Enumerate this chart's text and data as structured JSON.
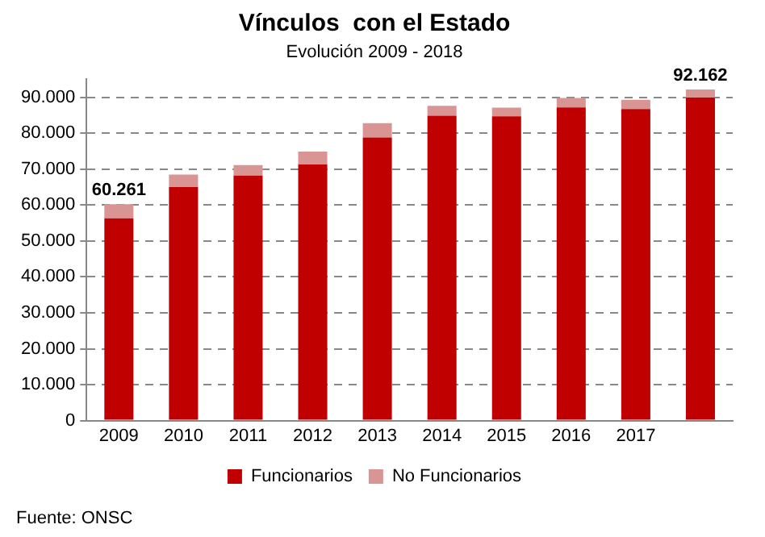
{
  "chart_data": {
    "type": "bar",
    "title": "Vínculos  con el Estado",
    "subtitle": "Evolución 2009 - 2018",
    "categories": [
      "2009",
      "2010",
      "2011",
      "2012",
      "2013",
      "2014",
      "2015",
      "2016",
      "2017",
      null
    ],
    "series": [
      {
        "name": "Funcionarios",
        "color": "#c00000",
        "values": [
          56300,
          65000,
          68200,
          71300,
          78800,
          84900,
          84700,
          87200,
          86700,
          89900
        ]
      },
      {
        "name": "No Funcionarios",
        "color": "#d99594",
        "values": [
          3961,
          3500,
          2900,
          3600,
          4000,
          2700,
          2400,
          2600,
          2600,
          2262
        ]
      }
    ],
    "stacked": true,
    "totals": [
      "60.261",
      null,
      null,
      null,
      null,
      null,
      null,
      null,
      null,
      "92.162"
    ],
    "ylim": [
      0,
      95000
    ],
    "yticks": [
      {
        "value": 0,
        "label": "0"
      },
      {
        "value": 10000,
        "label": "10.000"
      },
      {
        "value": 20000,
        "label": "20.000"
      },
      {
        "value": 30000,
        "label": "30.000"
      },
      {
        "value": 40000,
        "label": "40.000"
      },
      {
        "value": 50000,
        "label": "50.000"
      },
      {
        "value": 60000,
        "label": "60.000"
      },
      {
        "value": 70000,
        "label": "70.000"
      },
      {
        "value": 80000,
        "label": "80.000"
      },
      {
        "value": 90000,
        "label": "90.000"
      }
    ],
    "grid": "y",
    "legend": "bottom",
    "annotations": [
      "Fuente: ONSC"
    ]
  }
}
